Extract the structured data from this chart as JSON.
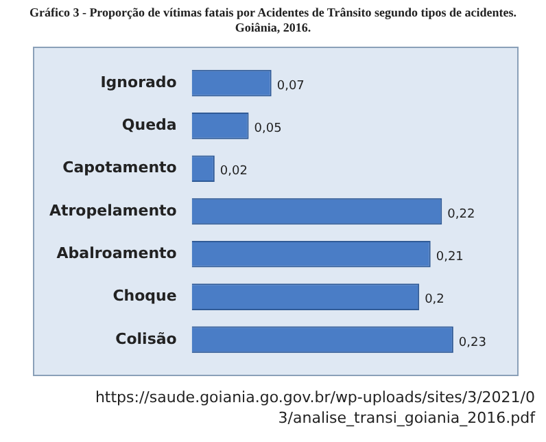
{
  "chart_data": {
    "type": "bar",
    "orientation": "horizontal",
    "title": "Gráfico 3 - Proporção de vítimas fatais por Acidentes de Trânsito segundo tipos de acidentes. Goiânia, 2016.",
    "categories": [
      "Ignorado",
      "Queda",
      "Capotamento",
      "Atropelamento",
      "Abalroamento",
      "Choque",
      "Colisão"
    ],
    "values": [
      0.07,
      0.05,
      0.02,
      0.22,
      0.21,
      0.2,
      0.23
    ],
    "value_labels": [
      "0,07",
      "0,05",
      "0,02",
      "0,22",
      "0,21",
      "0,2",
      "0,23"
    ],
    "color": "#4a7dc6",
    "grid": false,
    "legend": false,
    "tick_labels": "y",
    "annotations": [
      "https://saude.goiania.go.gov.br/wp-uploads/sites/3/2021/03/analise_transi_goiania_2016.pdf"
    ]
  }
}
